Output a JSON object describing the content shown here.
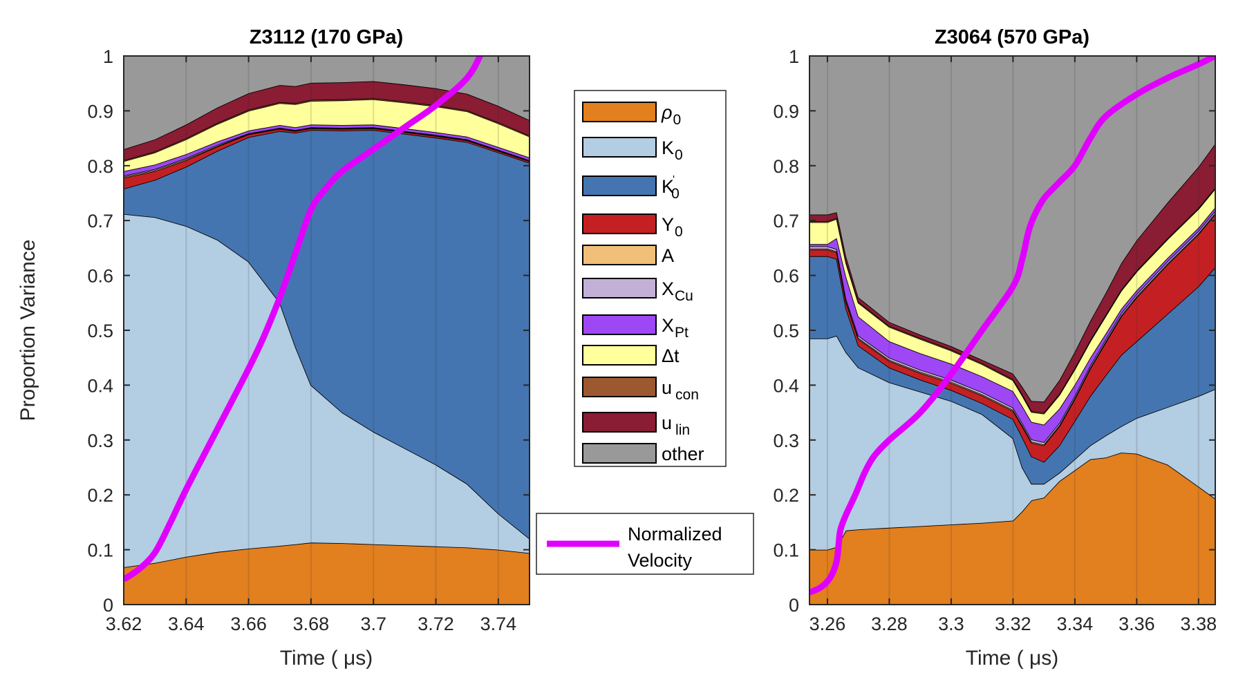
{
  "chart_data": [
    {
      "type": "area",
      "stacked": true,
      "title": "Z3112 (170 GPa)",
      "xlabel": "Time ( μs)",
      "ylabel": "Proportion Variance",
      "xlim": [
        3.62,
        3.75
      ],
      "ylim": [
        0,
        1
      ],
      "xticks": [
        3.62,
        3.64,
        3.66,
        3.68,
        3.7,
        3.72,
        3.74
      ],
      "xtick_labels": [
        "3.62",
        "3.64",
        "3.66",
        "3.68",
        "3.7",
        "3.72",
        "3.74"
      ],
      "yticks": [
        0,
        0.1,
        0.2,
        0.3,
        0.4,
        0.5,
        0.6,
        0.7,
        0.8,
        0.9,
        1
      ],
      "ytick_labels": [
        "0",
        "0.1",
        "0.2",
        "0.3",
        "0.4",
        "0.5",
        "0.6",
        "0.7",
        "0.8",
        "0.9",
        "1"
      ],
      "grid": "x",
      "x": [
        3.62,
        3.63,
        3.64,
        3.65,
        3.66,
        3.67,
        3.675,
        3.68,
        3.69,
        3.7,
        3.71,
        3.72,
        3.73,
        3.74,
        3.75
      ],
      "series": [
        {
          "name": "rho_0",
          "values": [
            0.068,
            0.076,
            0.087,
            0.096,
            0.102,
            0.107,
            0.11,
            0.113,
            0.112,
            0.11,
            0.108,
            0.106,
            0.104,
            0.1,
            0.094
          ]
        },
        {
          "name": "K_0",
          "values": [
            0.644,
            0.63,
            0.603,
            0.569,
            0.523,
            0.443,
            0.36,
            0.287,
            0.238,
            0.205,
            0.177,
            0.149,
            0.116,
            0.066,
            0.026
          ]
        },
        {
          "name": "K_0'",
          "values": [
            0.046,
            0.068,
            0.108,
            0.162,
            0.227,
            0.313,
            0.39,
            0.465,
            0.514,
            0.55,
            0.573,
            0.596,
            0.623,
            0.658,
            0.685
          ]
        },
        {
          "name": "Y_0",
          "values": [
            0.02,
            0.016,
            0.012,
            0.008,
            0.005,
            0.004,
            0.003,
            0.003,
            0.003,
            0.003,
            0.003,
            0.003,
            0.003,
            0.003,
            0.003
          ]
        },
        {
          "name": "A",
          "values": [
            0.002,
            0.002,
            0.002,
            0.001,
            0.001,
            0.001,
            0.001,
            0.001,
            0.001,
            0.001,
            0.001,
            0.001,
            0.001,
            0.001,
            0.001
          ]
        },
        {
          "name": "X_Cu",
          "values": [
            0.002,
            0.002,
            0.002,
            0.002,
            0.001,
            0.001,
            0.001,
            0.001,
            0.001,
            0.001,
            0.001,
            0.001,
            0.001,
            0.001,
            0.001
          ]
        },
        {
          "name": "X_Pt",
          "values": [
            0.008,
            0.008,
            0.007,
            0.006,
            0.005,
            0.005,
            0.005,
            0.005,
            0.005,
            0.005,
            0.005,
            0.005,
            0.005,
            0.005,
            0.005
          ]
        },
        {
          "name": "Δt",
          "values": [
            0.018,
            0.022,
            0.027,
            0.032,
            0.036,
            0.04,
            0.042,
            0.043,
            0.045,
            0.046,
            0.047,
            0.047,
            0.046,
            0.043,
            0.038
          ]
        },
        {
          "name": "u_con",
          "values": [
            0.002,
            0.002,
            0.002,
            0.002,
            0.002,
            0.002,
            0.002,
            0.002,
            0.002,
            0.002,
            0.002,
            0.002,
            0.002,
            0.002,
            0.002
          ]
        },
        {
          "name": "u_lin",
          "values": [
            0.02,
            0.022,
            0.025,
            0.028,
            0.03,
            0.031,
            0.031,
            0.031,
            0.031,
            0.031,
            0.031,
            0.031,
            0.03,
            0.03,
            0.028
          ]
        },
        {
          "name": "other",
          "values": [
            0.17,
            0.152,
            0.125,
            0.094,
            0.068,
            0.052,
            0.045,
            0.049,
            0.048,
            0.047,
            0.051,
            0.059,
            0.068,
            0.091,
            0.117
          ]
        }
      ],
      "velocity": {
        "name": "Normalized Velocity",
        "x": [
          3.62,
          3.625,
          3.63,
          3.635,
          3.64,
          3.65,
          3.66,
          3.665,
          3.67,
          3.675,
          3.68,
          3.685,
          3.69,
          3.7,
          3.71,
          3.72,
          3.73,
          3.735,
          3.74,
          3.745,
          3.75
        ],
        "values": [
          0.046,
          0.065,
          0.095,
          0.15,
          0.21,
          0.32,
          0.43,
          0.49,
          0.56,
          0.64,
          0.72,
          0.76,
          0.79,
          0.83,
          0.87,
          0.91,
          0.96,
          1.01,
          1.07,
          1.13,
          1.19
        ]
      }
    },
    {
      "type": "area",
      "stacked": true,
      "title": "Z3064 (570 GPa)",
      "xlabel": "Time ( μs)",
      "ylabel": "",
      "xlim": [
        3.2542,
        3.3854
      ],
      "ylim": [
        0,
        1
      ],
      "xticks": [
        3.26,
        3.28,
        3.3,
        3.32,
        3.34,
        3.36,
        3.38
      ],
      "xtick_labels": [
        "3.26",
        "3.28",
        "3.3",
        "3.32",
        "3.34",
        "3.36",
        "3.38"
      ],
      "yticks": [
        0,
        0.1,
        0.2,
        0.3,
        0.4,
        0.5,
        0.6,
        0.7,
        0.8,
        0.9,
        1
      ],
      "ytick_labels": [
        "0",
        "0.1",
        "0.2",
        "0.3",
        "0.4",
        "0.5",
        "0.6",
        "0.7",
        "0.8",
        "0.9",
        "1"
      ],
      "grid": "x",
      "x": [
        3.2542,
        3.26,
        3.263,
        3.266,
        3.27,
        3.28,
        3.29,
        3.3,
        3.31,
        3.32,
        3.323,
        3.326,
        3.33,
        3.335,
        3.34,
        3.345,
        3.35,
        3.355,
        3.36,
        3.37,
        3.38,
        3.3854
      ],
      "series": [
        {
          "name": "rho_0",
          "values": [
            0.1,
            0.1,
            0.105,
            0.135,
            0.137,
            0.14,
            0.143,
            0.146,
            0.149,
            0.153,
            0.17,
            0.19,
            0.195,
            0.225,
            0.245,
            0.265,
            0.268,
            0.277,
            0.275,
            0.255,
            0.215,
            0.193
          ]
        },
        {
          "name": "K_0",
          "values": [
            0.385,
            0.385,
            0.385,
            0.325,
            0.295,
            0.265,
            0.245,
            0.225,
            0.198,
            0.15,
            0.08,
            0.03,
            0.025,
            0.015,
            0.02,
            0.025,
            0.04,
            0.048,
            0.065,
            0.105,
            0.165,
            0.2
          ]
        },
        {
          "name": "K_0'",
          "values": [
            0.15,
            0.15,
            0.14,
            0.08,
            0.04,
            0.027,
            0.022,
            0.02,
            0.02,
            0.035,
            0.055,
            0.05,
            0.04,
            0.05,
            0.07,
            0.09,
            0.11,
            0.13,
            0.14,
            0.17,
            0.2,
            0.222
          ]
        },
        {
          "name": "Y_0",
          "values": [
            0.012,
            0.012,
            0.012,
            0.012,
            0.012,
            0.012,
            0.012,
            0.013,
            0.014,
            0.015,
            0.02,
            0.025,
            0.03,
            0.035,
            0.04,
            0.05,
            0.06,
            0.07,
            0.08,
            0.09,
            0.095,
            0.097
          ]
        },
        {
          "name": "A",
          "values": [
            0.002,
            0.002,
            0.002,
            0.002,
            0.002,
            0.002,
            0.002,
            0.002,
            0.002,
            0.002,
            0.002,
            0.002,
            0.002,
            0.002,
            0.002,
            0.002,
            0.002,
            0.002,
            0.002,
            0.002,
            0.002,
            0.002
          ]
        },
        {
          "name": "X_Cu",
          "values": [
            0.004,
            0.004,
            0.004,
            0.004,
            0.004,
            0.004,
            0.004,
            0.004,
            0.004,
            0.004,
            0.004,
            0.004,
            0.004,
            0.004,
            0.004,
            0.004,
            0.004,
            0.004,
            0.004,
            0.004,
            0.004,
            0.004
          ]
        },
        {
          "name": "X_Pt",
          "values": [
            0.004,
            0.004,
            0.02,
            0.04,
            0.035,
            0.03,
            0.03,
            0.029,
            0.029,
            0.03,
            0.031,
            0.032,
            0.032,
            0.026,
            0.02,
            0.014,
            0.01,
            0.008,
            0.007,
            0.006,
            0.006,
            0.006
          ]
        },
        {
          "name": "Δt",
          "values": [
            0.04,
            0.04,
            0.035,
            0.025,
            0.025,
            0.026,
            0.026,
            0.024,
            0.022,
            0.02,
            0.019,
            0.018,
            0.02,
            0.025,
            0.028,
            0.03,
            0.032,
            0.033,
            0.034,
            0.034,
            0.034,
            0.034
          ]
        },
        {
          "name": "u_con",
          "values": [
            0.002,
            0.002,
            0.002,
            0.002,
            0.002,
            0.002,
            0.002,
            0.002,
            0.002,
            0.002,
            0.002,
            0.002,
            0.002,
            0.002,
            0.002,
            0.002,
            0.002,
            0.002,
            0.002,
            0.002,
            0.002,
            0.002
          ]
        },
        {
          "name": "u_lin",
          "values": [
            0.012,
            0.012,
            0.01,
            0.01,
            0.008,
            0.007,
            0.006,
            0.006,
            0.006,
            0.01,
            0.014,
            0.018,
            0.02,
            0.025,
            0.03,
            0.035,
            0.04,
            0.048,
            0.055,
            0.065,
            0.075,
            0.08
          ]
        },
        {
          "name": "other",
          "values": [
            0.289,
            0.289,
            0.385,
            0.365,
            0.44,
            0.485,
            0.506,
            0.529,
            0.554,
            0.579,
            0.603,
            0.629,
            0.63,
            0.591,
            0.535,
            0.479,
            0.432,
            0.378,
            0.336,
            0.267,
            0.202,
            0.16
          ]
        }
      ],
      "velocity": {
        "name": "Normalized Velocity",
        "x": [
          3.2542,
          3.258,
          3.261,
          3.263,
          3.264,
          3.265,
          3.2665,
          3.269,
          3.272,
          3.275,
          3.28,
          3.29,
          3.3,
          3.31,
          3.32,
          3.323,
          3.325,
          3.327,
          3.33,
          3.335,
          3.34,
          3.345,
          3.35,
          3.36,
          3.37,
          3.38,
          3.3854
        ],
        "values": [
          0.022,
          0.032,
          0.05,
          0.08,
          0.13,
          0.15,
          0.17,
          0.2,
          0.24,
          0.27,
          0.3,
          0.35,
          0.42,
          0.5,
          0.58,
          0.63,
          0.68,
          0.71,
          0.74,
          0.77,
          0.8,
          0.85,
          0.89,
          0.93,
          0.96,
          0.985,
          1.0
        ]
      }
    }
  ],
  "legend": {
    "items": [
      {
        "key": "rho_0",
        "base": "ρ",
        "sub": "0",
        "color": "#e27f1f"
      },
      {
        "key": "K_0",
        "base": "K",
        "sub": "0",
        "color": "#b3cde2"
      },
      {
        "key": "K_0'",
        "base": "K",
        "sub": "0",
        "sup": "'",
        "color": "#4575b0"
      },
      {
        "key": "Y_0",
        "base": "Y",
        "sub": "0",
        "color": "#c42023"
      },
      {
        "key": "A",
        "base": "A",
        "sub": "",
        "color": "#f0bf78"
      },
      {
        "key": "X_Cu",
        "base": "X",
        "sub": "Cu",
        "color": "#c3b0d6"
      },
      {
        "key": "X_Pt",
        "base": "X",
        "sub": "Pt",
        "color": "#9e47f5"
      },
      {
        "key": "Δt",
        "base": "Δt",
        "sub": "",
        "color": "#ffff9c"
      },
      {
        "key": "u_con",
        "base": "u",
        "sub": "con",
        "color": "#9c5930"
      },
      {
        "key": "u_lin",
        "base": "u",
        "sub": "lin",
        "color": "#8a1c33"
      },
      {
        "key": "other",
        "base": "other",
        "sub": "",
        "color": "#999999"
      }
    ],
    "velocity_label_line1": "Normalized",
    "velocity_label_line2": "Velocity",
    "velocity_color": "#e000ff"
  }
}
